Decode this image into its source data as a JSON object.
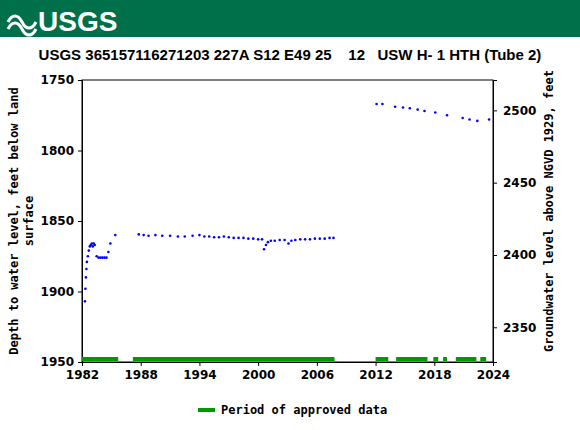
{
  "header": {
    "logo": "USGS"
  },
  "chart_data": {
    "type": "scatter",
    "title": "USGS 365157116271203 227A S12 E49 25    12   USW H- 1 HTH (Tube 2)",
    "ylabel": [
      "Depth to water level, feet below land",
      "surface"
    ],
    "y2label": "Groundwater level above NGVD 1929, feet",
    "xlim": [
      1982,
      2024
    ],
    "xticks": [
      1982,
      1988,
      1994,
      2000,
      2006,
      2012,
      2018,
      2024
    ],
    "ylim": [
      1750,
      1950
    ],
    "yticks": [
      1750,
      1800,
      1850,
      1900,
      1950
    ],
    "y2lim": [
      2521,
      2326
    ],
    "y2ticks": [
      2350,
      2400,
      2450,
      2500
    ],
    "legend": "bottom",
    "grid": false,
    "series": [
      {
        "type": "scatter",
        "color": "#0000ff",
        "marker": "dot",
        "x": [
          1982.3,
          1982.35,
          1982.4,
          1982.45,
          1982.5,
          1982.6,
          1982.7,
          1982.8,
          1982.9,
          1983.0,
          1983.1,
          1983.2,
          1983.3,
          1983.5,
          1983.7,
          1983.9,
          1984.1,
          1984.3,
          1984.5,
          1984.7,
          1984.9,
          1985.4,
          1987.8,
          1988.3,
          1988.8,
          1989.5,
          1990.2,
          1991.0,
          1991.8,
          1992.5,
          1993.3,
          1994.0,
          1994.5,
          1995.0,
          1995.5,
          1996.0,
          1996.5,
          1997.0,
          1997.5,
          1998.0,
          1998.5,
          1999.0,
          1999.5,
          2000.0,
          2000.4,
          2000.6,
          2000.8,
          2001.0,
          2001.3,
          2001.7,
          2002.2,
          2002.7,
          2003.1,
          2003.4,
          2003.8,
          2004.3,
          2004.8,
          2005.3,
          2005.8,
          2006.3,
          2006.8,
          2007.3,
          2007.7,
          2012.1,
          2012.7,
          2014.0,
          2014.8,
          2015.5,
          2016.3,
          2017.0,
          2018.1,
          2019.3,
          2020.9,
          2021.6,
          2022.4,
          2023.6
        ],
        "values": [
          1907,
          1898,
          1890,
          1884,
          1879,
          1875,
          1871,
          1868,
          1867,
          1866,
          1868,
          1866,
          1867,
          1875,
          1876,
          1876,
          1876,
          1876,
          1876,
          1872,
          1866,
          1860,
          1859.5,
          1860,
          1860.5,
          1860,
          1860.5,
          1860.5,
          1861,
          1861,
          1860.5,
          1860,
          1861,
          1861,
          1861.5,
          1861.5,
          1861,
          1861.5,
          1862,
          1862,
          1862,
          1862.5,
          1862.5,
          1863,
          1863,
          1870,
          1867,
          1865,
          1864,
          1864,
          1863.5,
          1863.5,
          1866,
          1864,
          1863.5,
          1863,
          1863,
          1863,
          1862.5,
          1862.5,
          1862.5,
          1862,
          1862,
          1767,
          1767,
          1769,
          1769.5,
          1770,
          1771,
          1772,
          1773,
          1775,
          1777,
          1778,
          1779,
          1778
        ]
      },
      {
        "name": "Period of approved data",
        "type": "span",
        "color": "#009900",
        "start": [
          1982.0,
          1987.2,
          2012.0,
          2014.1,
          2017.9,
          2018.9,
          2020.2,
          2022.7
        ],
        "end": [
          1985.7,
          2007.8,
          2013.3,
          2017.3,
          2018.4,
          2019.3,
          2022.3,
          2023.3
        ]
      }
    ]
  }
}
